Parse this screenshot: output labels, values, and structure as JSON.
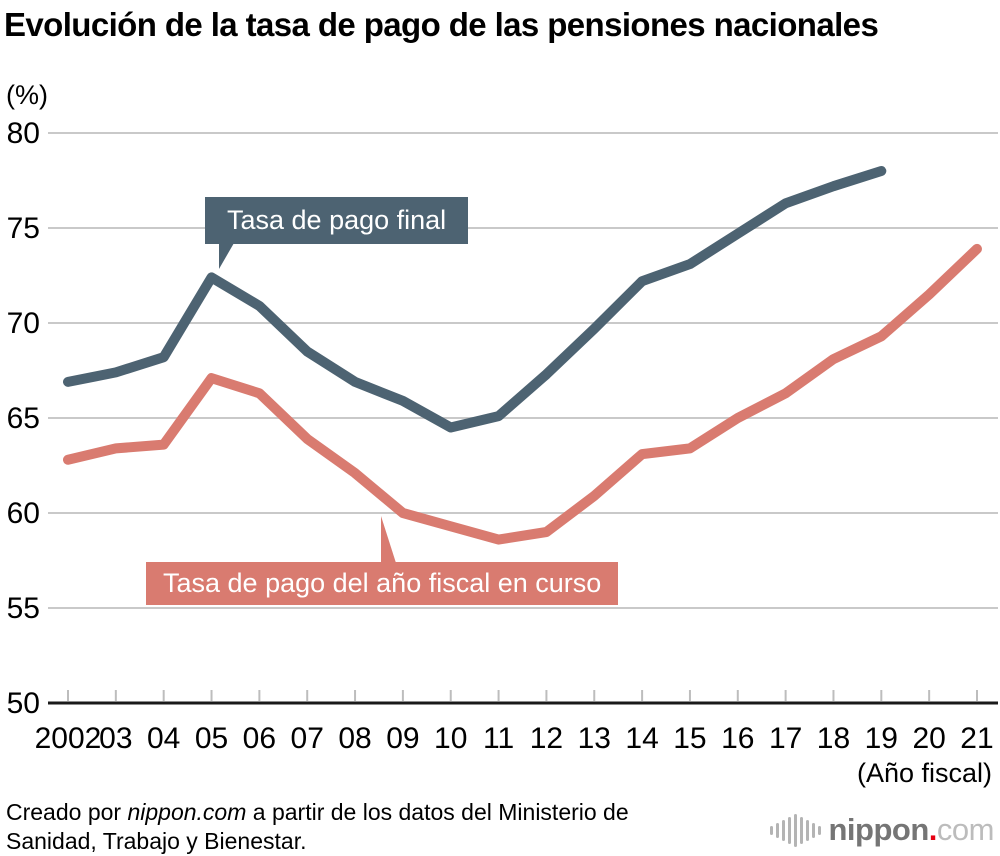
{
  "title": "Evolución de la tasa de pago de las pensiones nacionales",
  "unit_label": "(%)",
  "x_axis_note": "(Año fiscal)",
  "annotations": {
    "final_label": "Tasa de pago final",
    "current_label": "Tasa de pago del año fiscal en curso"
  },
  "footer": {
    "prefix": "Creado por ",
    "brand": "nippon.com",
    "suffix": " a partir de los datos del Ministerio de Sanidad, Trabajo y Bienestar."
  },
  "logo": {
    "name": "nippon",
    "dot": ".",
    "tld": "com"
  },
  "colors": {
    "final": "#4d6372",
    "current": "#d97b70",
    "grid": "#c9c9c9",
    "tick": "#bdbdbd",
    "axis": "#1a1a1a"
  },
  "chart_data": {
    "type": "line",
    "title": "Evolución de la tasa de pago de las pensiones nacionales",
    "xlabel": "(Año fiscal)",
    "ylabel": "(%)",
    "ylim": [
      50,
      80
    ],
    "yticks": [
      50,
      55,
      60,
      65,
      70,
      75,
      80
    ],
    "grid": true,
    "legend": "inline-callouts",
    "categories": [
      "2002",
      "03",
      "04",
      "05",
      "06",
      "07",
      "08",
      "09",
      "10",
      "11",
      "12",
      "13",
      "14",
      "15",
      "16",
      "17",
      "18",
      "19",
      "20",
      "21"
    ],
    "series": [
      {
        "name": "Tasa de pago final",
        "color_key": "final",
        "values": [
          66.9,
          67.4,
          68.2,
          72.4,
          70.9,
          68.5,
          66.9,
          65.9,
          64.5,
          65.1,
          67.3,
          69.7,
          72.2,
          73.1,
          74.7,
          76.3,
          77.2,
          78.0,
          null,
          null
        ]
      },
      {
        "name": "Tasa de pago del año fiscal en curso",
        "color_key": "current",
        "values": [
          62.8,
          63.4,
          63.6,
          67.1,
          66.3,
          63.9,
          62.1,
          60.0,
          59.3,
          58.6,
          59.0,
          60.9,
          63.1,
          63.4,
          65.0,
          66.3,
          68.1,
          69.3,
          71.5,
          73.9
        ]
      }
    ]
  },
  "logo_bar_heights": [
    9,
    15,
    21,
    27,
    33,
    27,
    21,
    15,
    9
  ]
}
